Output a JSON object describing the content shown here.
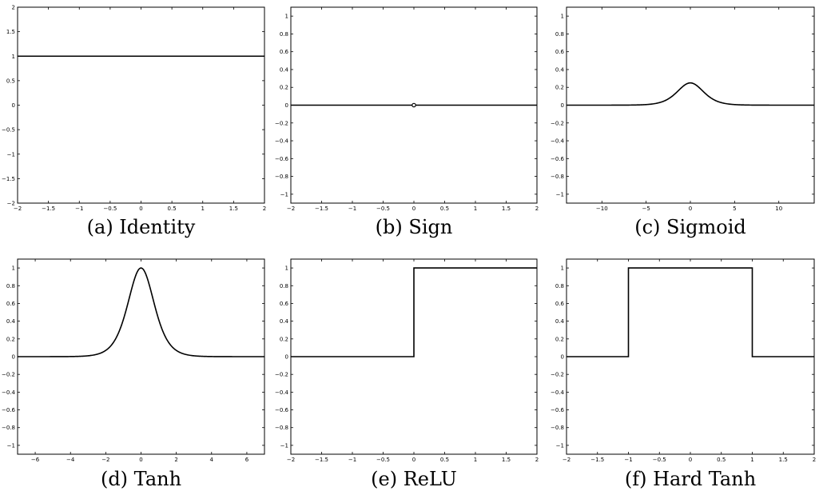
{
  "chart_data": [
    {
      "type": "line",
      "caption": "(a) Identity",
      "xlim": [
        -2,
        2
      ],
      "ylim": [
        -2,
        2
      ],
      "xticks": [
        -2,
        -1.5,
        -1,
        -0.5,
        0,
        0.5,
        1,
        1.5,
        2
      ],
      "xtick_labels": [
        "−2",
        "−1.5",
        "−1",
        "−0.5",
        "0",
        "0.5",
        "1",
        "1.5",
        "2"
      ],
      "yticks": [
        -2,
        -1.5,
        -1,
        -0.5,
        0,
        0.5,
        1,
        1.5,
        2
      ],
      "ytick_labels": [
        "−2",
        "−1.5",
        "−1",
        "−0.5",
        "0",
        "0.5",
        "1",
        "1.5",
        "2"
      ],
      "series": [
        {
          "function": "identity_derivative",
          "x": [
            -2,
            2
          ],
          "y": [
            1,
            1
          ]
        }
      ]
    },
    {
      "type": "line",
      "caption": "(b) Sign",
      "xlim": [
        -2,
        2
      ],
      "ylim": [
        -1.1,
        1.1
      ],
      "xticks": [
        -2,
        -1.5,
        -1,
        -0.5,
        0,
        0.5,
        1,
        1.5,
        2
      ],
      "xtick_labels": [
        "−2",
        "−1.5",
        "−1",
        "−0.5",
        "0",
        "0.5",
        "1",
        "1.5",
        "2"
      ],
      "yticks": [
        -1,
        -0.8,
        -0.6,
        -0.4,
        -0.2,
        0,
        0.2,
        0.4,
        0.6,
        0.8,
        1
      ],
      "ytick_labels": [
        "−1",
        "−0.8",
        "−0.6",
        "−0.4",
        "−0.2",
        "0",
        "0.2",
        "0.4",
        "0.6",
        "0.8",
        "1"
      ],
      "series": [
        {
          "function": "sign_derivative",
          "x": [
            -2,
            2
          ],
          "y": [
            0,
            0
          ]
        }
      ],
      "markers": [
        {
          "x": 0,
          "y": 0,
          "style": "open-circle"
        }
      ]
    },
    {
      "type": "line",
      "caption": "(c) Sigmoid",
      "xlim": [
        -14,
        14
      ],
      "ylim": [
        -1.1,
        1.1
      ],
      "xticks": [
        -10,
        -5,
        0,
        5,
        10
      ],
      "xtick_labels": [
        "−10",
        "−5",
        "0",
        "5",
        "10"
      ],
      "yticks": [
        -1,
        -0.8,
        -0.6,
        -0.4,
        -0.2,
        0,
        0.2,
        0.4,
        0.6,
        0.8,
        1
      ],
      "ytick_labels": [
        "−1",
        "−0.8",
        "−0.6",
        "−0.4",
        "−0.2",
        "0",
        "0.2",
        "0.4",
        "0.6",
        "0.8",
        "1"
      ],
      "series": [
        {
          "function": "sigmoid_derivative",
          "peak": 0.25
        }
      ]
    },
    {
      "type": "line",
      "caption": "(d) Tanh",
      "xlim": [
        -7,
        7
      ],
      "ylim": [
        -1.1,
        1.1
      ],
      "xticks": [
        -6,
        -4,
        -2,
        0,
        2,
        4,
        6
      ],
      "xtick_labels": [
        "−6",
        "−4",
        "−2",
        "0",
        "2",
        "4",
        "6"
      ],
      "yticks": [
        -1,
        -0.8,
        -0.6,
        -0.4,
        -0.2,
        0,
        0.2,
        0.4,
        0.6,
        0.8,
        1
      ],
      "ytick_labels": [
        "−1",
        "−0.8",
        "−0.6",
        "−0.4",
        "−0.2",
        "0",
        "0.2",
        "0.4",
        "0.6",
        "0.8",
        "1"
      ],
      "series": [
        {
          "function": "tanh_derivative",
          "peak": 1
        }
      ]
    },
    {
      "type": "line",
      "caption": "(e) ReLU",
      "xlim": [
        -2,
        2
      ],
      "ylim": [
        -1.1,
        1.1
      ],
      "xticks": [
        -2,
        -1.5,
        -1,
        -0.5,
        0,
        0.5,
        1,
        1.5,
        2
      ],
      "xtick_labels": [
        "−2",
        "−1.5",
        "−1",
        "−0.5",
        "0",
        "0.5",
        "1",
        "1.5",
        "2"
      ],
      "yticks": [
        -1,
        -0.8,
        -0.6,
        -0.4,
        -0.2,
        0,
        0.2,
        0.4,
        0.6,
        0.8,
        1
      ],
      "ytick_labels": [
        "−1",
        "−0.8",
        "−0.6",
        "−0.4",
        "−0.2",
        "0",
        "0.2",
        "0.4",
        "0.6",
        "0.8",
        "1"
      ],
      "series": [
        {
          "function": "relu_derivative",
          "x": [
            -2,
            0,
            0,
            2
          ],
          "y": [
            0,
            0,
            1,
            1
          ]
        }
      ]
    },
    {
      "type": "line",
      "caption": "(f) Hard Tanh",
      "xlim": [
        -2,
        2
      ],
      "ylim": [
        -1.1,
        1.1
      ],
      "xticks": [
        -2,
        -1.5,
        -1,
        -0.5,
        0,
        0.5,
        1,
        1.5,
        2
      ],
      "xtick_labels": [
        "−2",
        "−1.5",
        "−1",
        "−0.5",
        "0",
        "0.5",
        "1",
        "1.5",
        "2"
      ],
      "yticks": [
        -1,
        -0.8,
        -0.6,
        -0.4,
        -0.2,
        0,
        0.2,
        0.4,
        0.6,
        0.8,
        1
      ],
      "ytick_labels": [
        "−1",
        "−0.8",
        "−0.6",
        "−0.4",
        "−0.2",
        "0",
        "0.2",
        "0.4",
        "0.6",
        "0.8",
        "1"
      ],
      "series": [
        {
          "function": "hardtanh_derivative",
          "x": [
            -2,
            -1,
            -1,
            1,
            1,
            2
          ],
          "y": [
            0,
            0,
            1,
            1,
            0,
            0
          ]
        }
      ]
    }
  ]
}
